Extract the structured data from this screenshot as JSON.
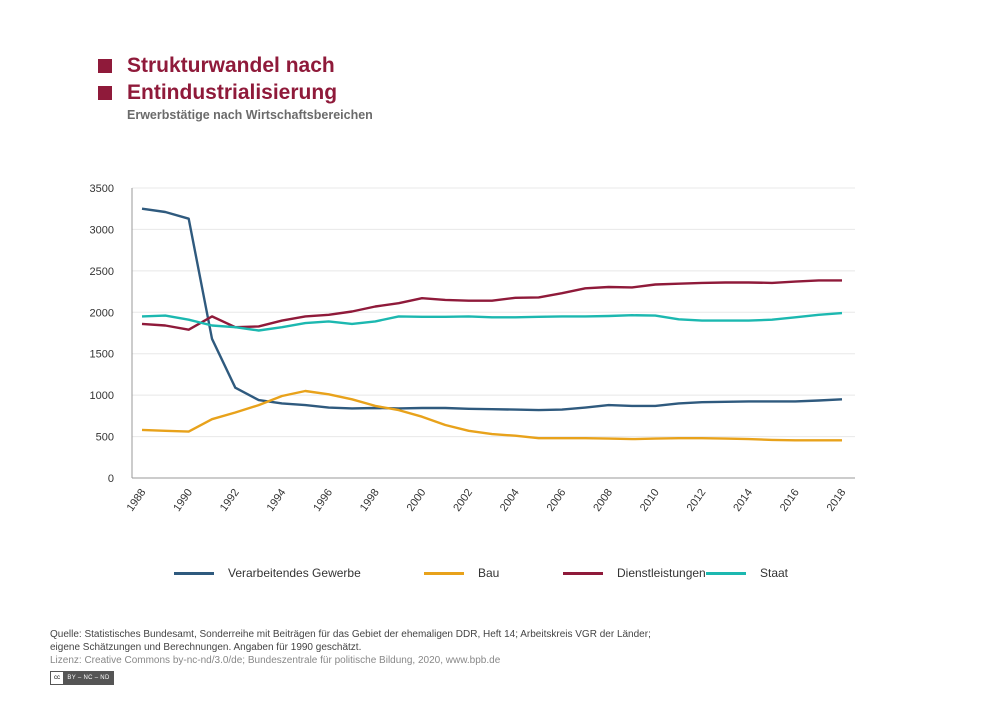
{
  "header": {
    "title_line1": "Strukturwandel nach",
    "title_line2": "Entindustrialisierung",
    "subtitle": "Erwerbstätige nach Wirtschaftsbereichen",
    "accent_color": "#8f1a3a"
  },
  "chart_data": {
    "type": "line",
    "x": [
      1988,
      1989,
      1990,
      1991,
      1992,
      1993,
      1994,
      1995,
      1996,
      1997,
      1998,
      1999,
      2000,
      2001,
      2002,
      2003,
      2004,
      2005,
      2006,
      2007,
      2008,
      2009,
      2010,
      2011,
      2012,
      2013,
      2014,
      2015,
      2016,
      2017,
      2018
    ],
    "x_tick_labels": [
      "1988",
      "1990",
      "1992",
      "1994",
      "1996",
      "1998",
      "2000",
      "2002",
      "2004",
      "2006",
      "2008",
      "2010",
      "2012",
      "2014",
      "2016",
      "2018"
    ],
    "y_tick_labels": [
      "0",
      "500",
      "1000",
      "1500",
      "2000",
      "2500",
      "3000",
      "3500"
    ],
    "ylim": [
      0,
      3500
    ],
    "grid": true,
    "legend_position": "bottom",
    "series": [
      {
        "name": "Verarbeitendes Gewerbe",
        "color": "#2f5a7e",
        "values": [
          3250,
          3210,
          3130,
          1680,
          1090,
          940,
          900,
          880,
          850,
          840,
          845,
          840,
          845,
          845,
          835,
          830,
          825,
          820,
          825,
          850,
          880,
          870,
          870,
          900,
          915,
          920,
          925,
          925,
          925,
          935,
          950
        ]
      },
      {
        "name": "Bau",
        "color": "#e8a21b",
        "values": [
          580,
          570,
          560,
          710,
          790,
          880,
          990,
          1050,
          1010,
          950,
          870,
          820,
          740,
          640,
          570,
          530,
          510,
          480,
          480,
          480,
          475,
          470,
          475,
          480,
          480,
          475,
          470,
          460,
          455,
          455,
          455
        ]
      },
      {
        "name": "Dienstleistungen",
        "color": "#8f1a3a",
        "values": [
          1860,
          1840,
          1790,
          1950,
          1820,
          1830,
          1900,
          1950,
          1970,
          2010,
          2070,
          2110,
          2170,
          2150,
          2140,
          2140,
          2175,
          2180,
          2230,
          2290,
          2305,
          2300,
          2335,
          2345,
          2355,
          2360,
          2360,
          2355,
          2370,
          2385,
          2385
        ]
      },
      {
        "name": "Staat",
        "color": "#1cb8b0",
        "values": [
          1950,
          1960,
          1910,
          1840,
          1820,
          1780,
          1820,
          1870,
          1890,
          1860,
          1890,
          1950,
          1945,
          1945,
          1950,
          1940,
          1940,
          1945,
          1950,
          1950,
          1955,
          1965,
          1960,
          1915,
          1900,
          1900,
          1900,
          1910,
          1940,
          1970,
          1990
        ]
      }
    ]
  },
  "footer": {
    "source_line1": "Quelle:  Statistisches Bundesamt, Sonderreihe mit Beiträgen für das Gebiet der ehemaligen DDR, Heft 14; Arbeitskreis VGR der Länder;",
    "source_line2": "eigene Schätzungen und Berechnungen. Angaben für 1990 geschätzt.",
    "license": "Lizenz:  Creative Commons by-nc-nd/3.0/de; Bundeszentrale für politische Bildung, 2020, www.bpb.de",
    "badge_cc": "cc",
    "badge_text": "BY – NC – ND"
  }
}
